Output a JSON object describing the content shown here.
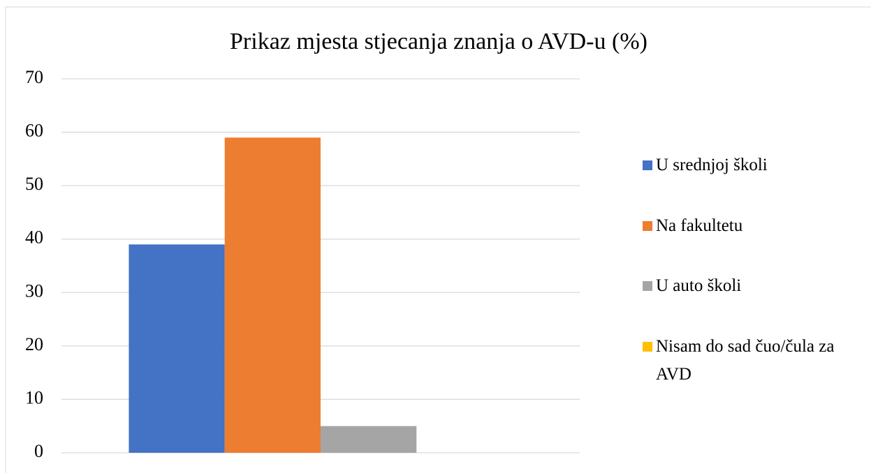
{
  "chart_data": {
    "type": "bar",
    "title": "Prikaz mjesta stjecanja znanja o AVD-u (%)",
    "categories": [
      null
    ],
    "series": [
      {
        "name": "U srednjoj školi",
        "color": "#4472c4",
        "values": [
          39
        ]
      },
      {
        "name": "Na fakultetu",
        "color": "#ed7d31",
        "values": [
          59
        ]
      },
      {
        "name": "U auto školi",
        "color": "#a5a5a5",
        "values": [
          5
        ]
      },
      {
        "name": "Nisam do sad čuo/čula za AVD",
        "color": "#ffc000",
        "values": [
          0
        ]
      }
    ],
    "ylim": [
      0,
      70
    ],
    "yticks": [
      0,
      10,
      20,
      30,
      40,
      50,
      60,
      70
    ],
    "grid": true,
    "legend": "right"
  }
}
